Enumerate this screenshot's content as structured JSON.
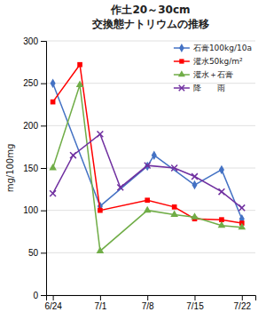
{
  "chart_data": {
    "type": "line",
    "title": "作土20～30cm\n交換態ナトリウムの推移",
    "ylabel": "mg/100mg",
    "xlim": [
      -1,
      30
    ],
    "xticks": [
      {
        "value": 0,
        "label": "6/24"
      },
      {
        "value": 7,
        "label": "7/1"
      },
      {
        "value": 14,
        "label": "7/8"
      },
      {
        "value": 21,
        "label": "7/15"
      },
      {
        "value": 28,
        "label": "7/22"
      }
    ],
    "ylim": [
      0,
      300
    ],
    "yticks": [
      0,
      50,
      100,
      150,
      200,
      250,
      300
    ],
    "grid": "y",
    "legend": "upper right",
    "series": [
      {
        "name": "石膏100kg/10a",
        "color": "#4472C4",
        "marker": "diamond",
        "x": [
          0,
          7,
          14,
          15,
          21,
          25,
          28
        ],
        "values": [
          250,
          105,
          152,
          165,
          130,
          148,
          90
        ]
      },
      {
        "name": "灌水50kg/m²",
        "color": "#FF0000",
        "marker": "square",
        "x": [
          0,
          4,
          7,
          14,
          18,
          21,
          25,
          28
        ],
        "values": [
          228,
          272,
          100,
          112,
          104,
          90,
          89,
          85
        ]
      },
      {
        "name": "灌水＋石膏",
        "color": "#70AD47",
        "marker": "triangle",
        "x": [
          0,
          4,
          7,
          14,
          18,
          21,
          25,
          28
        ],
        "values": [
          150,
          248,
          52,
          100,
          95,
          92,
          82,
          80
        ]
      },
      {
        "name": "降　　雨",
        "color": "#7030A0",
        "marker": "x",
        "x": [
          0,
          3,
          7,
          10,
          14,
          18,
          21,
          25,
          28
        ],
        "values": [
          120,
          165,
          190,
          127,
          153,
          150,
          140,
          122,
          103
        ]
      }
    ]
  }
}
